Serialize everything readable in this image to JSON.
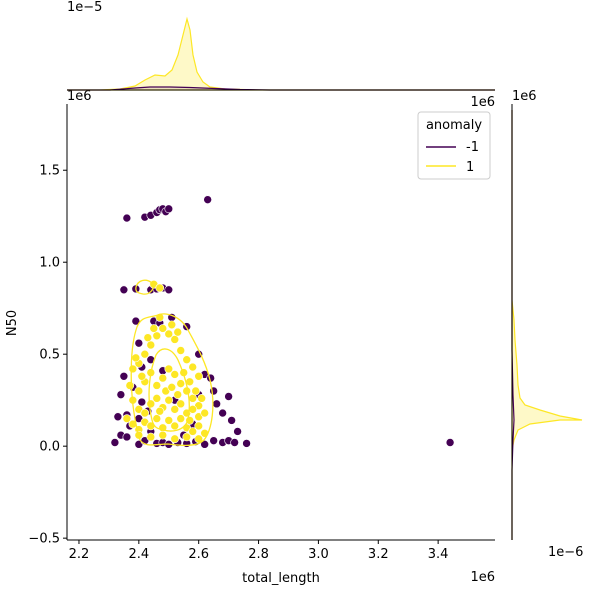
{
  "chart_data": {
    "type": "scatter",
    "xlabel": "total_length",
    "ylabel": "N50",
    "x_offset_label": "1e6",
    "y_offset_label": "1e6",
    "top_marginal_offset_label": "1e−5",
    "right_marginal_offset_label_top": "1e6",
    "right_marginal_offset_label_bottom": "1e−6",
    "xlim": [
      2160000,
      3590000
    ],
    "ylim": [
      -510000,
      1860000
    ],
    "x_ticks": [
      2200000,
      2400000,
      2600000,
      2800000,
      3000000,
      3200000,
      3400000
    ],
    "x_tick_labels": [
      "2.2",
      "2.4",
      "2.6",
      "2.8",
      "3.0",
      "3.2",
      "3.4"
    ],
    "y_ticks": [
      -500000,
      0,
      500000,
      1000000,
      1500000
    ],
    "y_tick_labels": [
      "−0.5",
      "0.0",
      "0.5",
      "1.0",
      "1.5"
    ],
    "grid": false,
    "legend": {
      "title": "anomaly",
      "placement": "top-right"
    },
    "series": [
      {
        "name": "-1",
        "color": "#440154",
        "points": [
          [
            2360000,
            1240000
          ],
          [
            2420000,
            1245000
          ],
          [
            2440000,
            1255000
          ],
          [
            2460000,
            1270000
          ],
          [
            2470000,
            1285000
          ],
          [
            2480000,
            1290000
          ],
          [
            2490000,
            1275000
          ],
          [
            2500000,
            1290000
          ],
          [
            2630000,
            1340000
          ],
          [
            2350000,
            850000
          ],
          [
            2390000,
            855000
          ],
          [
            2440000,
            850000
          ],
          [
            2460000,
            855000
          ],
          [
            2480000,
            860000
          ],
          [
            2500000,
            850000
          ],
          [
            2320000,
            20000
          ],
          [
            2340000,
            60000
          ],
          [
            2360000,
            50000
          ],
          [
            2400000,
            10000
          ],
          [
            2420000,
            30000
          ],
          [
            2440000,
            80000
          ],
          [
            2460000,
            15000
          ],
          [
            2480000,
            20000
          ],
          [
            2500000,
            10000
          ],
          [
            2530000,
            20000
          ],
          [
            2560000,
            15000
          ],
          [
            2590000,
            25000
          ],
          [
            2620000,
            10000
          ],
          [
            2650000,
            30000
          ],
          [
            2680000,
            20000
          ],
          [
            2700000,
            30000
          ],
          [
            2720000,
            20000
          ],
          [
            2760000,
            15000
          ],
          [
            3440000,
            20000
          ],
          [
            2330000,
            160000
          ],
          [
            2340000,
            280000
          ],
          [
            2350000,
            380000
          ],
          [
            2360000,
            170000
          ],
          [
            2380000,
            320000
          ],
          [
            2400000,
            150000
          ],
          [
            2410000,
            240000
          ],
          [
            2430000,
            190000
          ],
          [
            2390000,
            680000
          ],
          [
            2400000,
            560000
          ],
          [
            2450000,
            680000
          ],
          [
            2470000,
            670000
          ],
          [
            2510000,
            700000
          ],
          [
            2560000,
            650000
          ],
          [
            2600000,
            500000
          ],
          [
            2620000,
            390000
          ],
          [
            2640000,
            370000
          ],
          [
            2650000,
            300000
          ],
          [
            2600000,
            280000
          ],
          [
            2660000,
            230000
          ],
          [
            2680000,
            180000
          ],
          [
            2700000,
            270000
          ],
          [
            2710000,
            140000
          ],
          [
            2730000,
            80000
          ],
          [
            2580000,
            120000
          ],
          [
            2550000,
            60000
          ],
          [
            2520000,
            250000
          ],
          [
            2480000,
            410000
          ],
          [
            2440000,
            470000
          ],
          [
            2370000,
            110000
          ],
          [
            2410000,
            430000
          ]
        ]
      },
      {
        "name": "1",
        "color": "#fde725",
        "points": [
          [
            2380000,
            420000
          ],
          [
            2400000,
            450000
          ],
          [
            2420000,
            500000
          ],
          [
            2440000,
            550000
          ],
          [
            2460000,
            600000
          ],
          [
            2480000,
            640000
          ],
          [
            2500000,
            610000
          ],
          [
            2520000,
            580000
          ],
          [
            2540000,
            520000
          ],
          [
            2560000,
            470000
          ],
          [
            2580000,
            430000
          ],
          [
            2600000,
            380000
          ],
          [
            2400000,
            300000
          ],
          [
            2420000,
            350000
          ],
          [
            2440000,
            400000
          ],
          [
            2460000,
            330000
          ],
          [
            2480000,
            370000
          ],
          [
            2500000,
            420000
          ],
          [
            2520000,
            390000
          ],
          [
            2540000,
            340000
          ],
          [
            2560000,
            300000
          ],
          [
            2580000,
            260000
          ],
          [
            2600000,
            220000
          ],
          [
            2380000,
            250000
          ],
          [
            2400000,
            200000
          ],
          [
            2420000,
            180000
          ],
          [
            2440000,
            230000
          ],
          [
            2460000,
            260000
          ],
          [
            2480000,
            210000
          ],
          [
            2500000,
            250000
          ],
          [
            2520000,
            200000
          ],
          [
            2540000,
            230000
          ],
          [
            2560000,
            180000
          ],
          [
            2580000,
            200000
          ],
          [
            2600000,
            160000
          ],
          [
            2620000,
            180000
          ],
          [
            2360000,
            150000
          ],
          [
            2380000,
            120000
          ],
          [
            2400000,
            90000
          ],
          [
            2420000,
            130000
          ],
          [
            2440000,
            110000
          ],
          [
            2460000,
            150000
          ],
          [
            2480000,
            100000
          ],
          [
            2500000,
            140000
          ],
          [
            2520000,
            110000
          ],
          [
            2540000,
            150000
          ],
          [
            2560000,
            100000
          ],
          [
            2580000,
            80000
          ],
          [
            2600000,
            110000
          ],
          [
            2620000,
            70000
          ],
          [
            2400000,
            60000
          ],
          [
            2440000,
            50000
          ],
          [
            2480000,
            60000
          ],
          [
            2520000,
            40000
          ],
          [
            2560000,
            50000
          ],
          [
            2600000,
            40000
          ],
          [
            2470000,
            700000
          ],
          [
            2450000,
            640000
          ],
          [
            2430000,
            590000
          ],
          [
            2510000,
            660000
          ],
          [
            2530000,
            620000
          ],
          [
            2410000,
            380000
          ],
          [
            2490000,
            300000
          ],
          [
            2550000,
            400000
          ],
          [
            2470000,
            190000
          ],
          [
            2510000,
            320000
          ],
          [
            2530000,
            280000
          ],
          [
            2570000,
            350000
          ],
          [
            2610000,
            260000
          ],
          [
            2450000,
            880000
          ],
          [
            2470000,
            860000
          ],
          [
            2390000,
            480000
          ],
          [
            2370000,
            330000
          ],
          [
            2570000,
            140000
          ],
          [
            2590000,
            300000
          ]
        ]
      }
    ]
  }
}
